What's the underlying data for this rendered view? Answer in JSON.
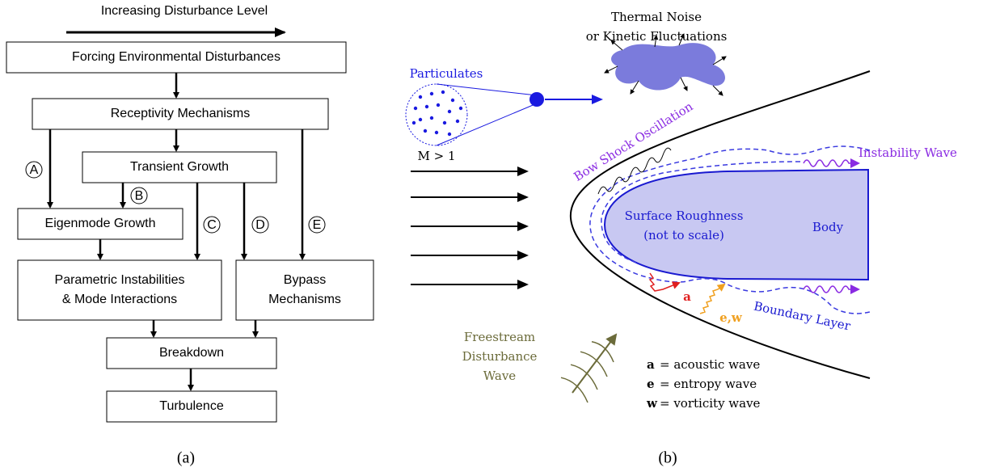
{
  "panel_a": {
    "header": "Increasing Disturbance Level",
    "boxes": [
      {
        "lines": [
          "Forcing Environmental Disturbances"
        ]
      },
      {
        "lines": [
          "Receptivity Mechanisms"
        ]
      },
      {
        "lines": [
          "Transient Growth"
        ]
      },
      {
        "lines": [
          "Eigenmode Growth"
        ]
      },
      {
        "lines": [
          "Parametric Instabilities",
          "& Mode Interactions"
        ]
      },
      {
        "lines": [
          "Bypass",
          "Mechanisms"
        ]
      },
      {
        "lines": [
          "Breakdown"
        ]
      },
      {
        "lines": [
          "Turbulence"
        ]
      }
    ],
    "paths": [
      "A",
      "B",
      "C",
      "D",
      "E"
    ],
    "caption": "(a)"
  },
  "panel_b": {
    "thermal_noise": [
      "Thermal Noise",
      "or Kinetic Fluctuations"
    ],
    "particulates": "Particulates",
    "mach": "M > 1",
    "bow_shock": "Bow Shock Oscillation",
    "instability_wave": "Instability Wave",
    "surface_roughness": [
      "Surface Roughness",
      "(not to scale)"
    ],
    "body": "Body",
    "wave_a": "a",
    "wave_ew": "e,w",
    "boundary_layer": "Boundary Layer",
    "freestream": [
      "Freestream",
      "Disturbance",
      "Wave"
    ],
    "legend": [
      {
        "symbol": "a",
        "text": "= acoustic wave"
      },
      {
        "symbol": "e",
        "text": "= entropy wave"
      },
      {
        "symbol": "w",
        "text": "= vorticity wave"
      }
    ],
    "caption": "(b)"
  }
}
